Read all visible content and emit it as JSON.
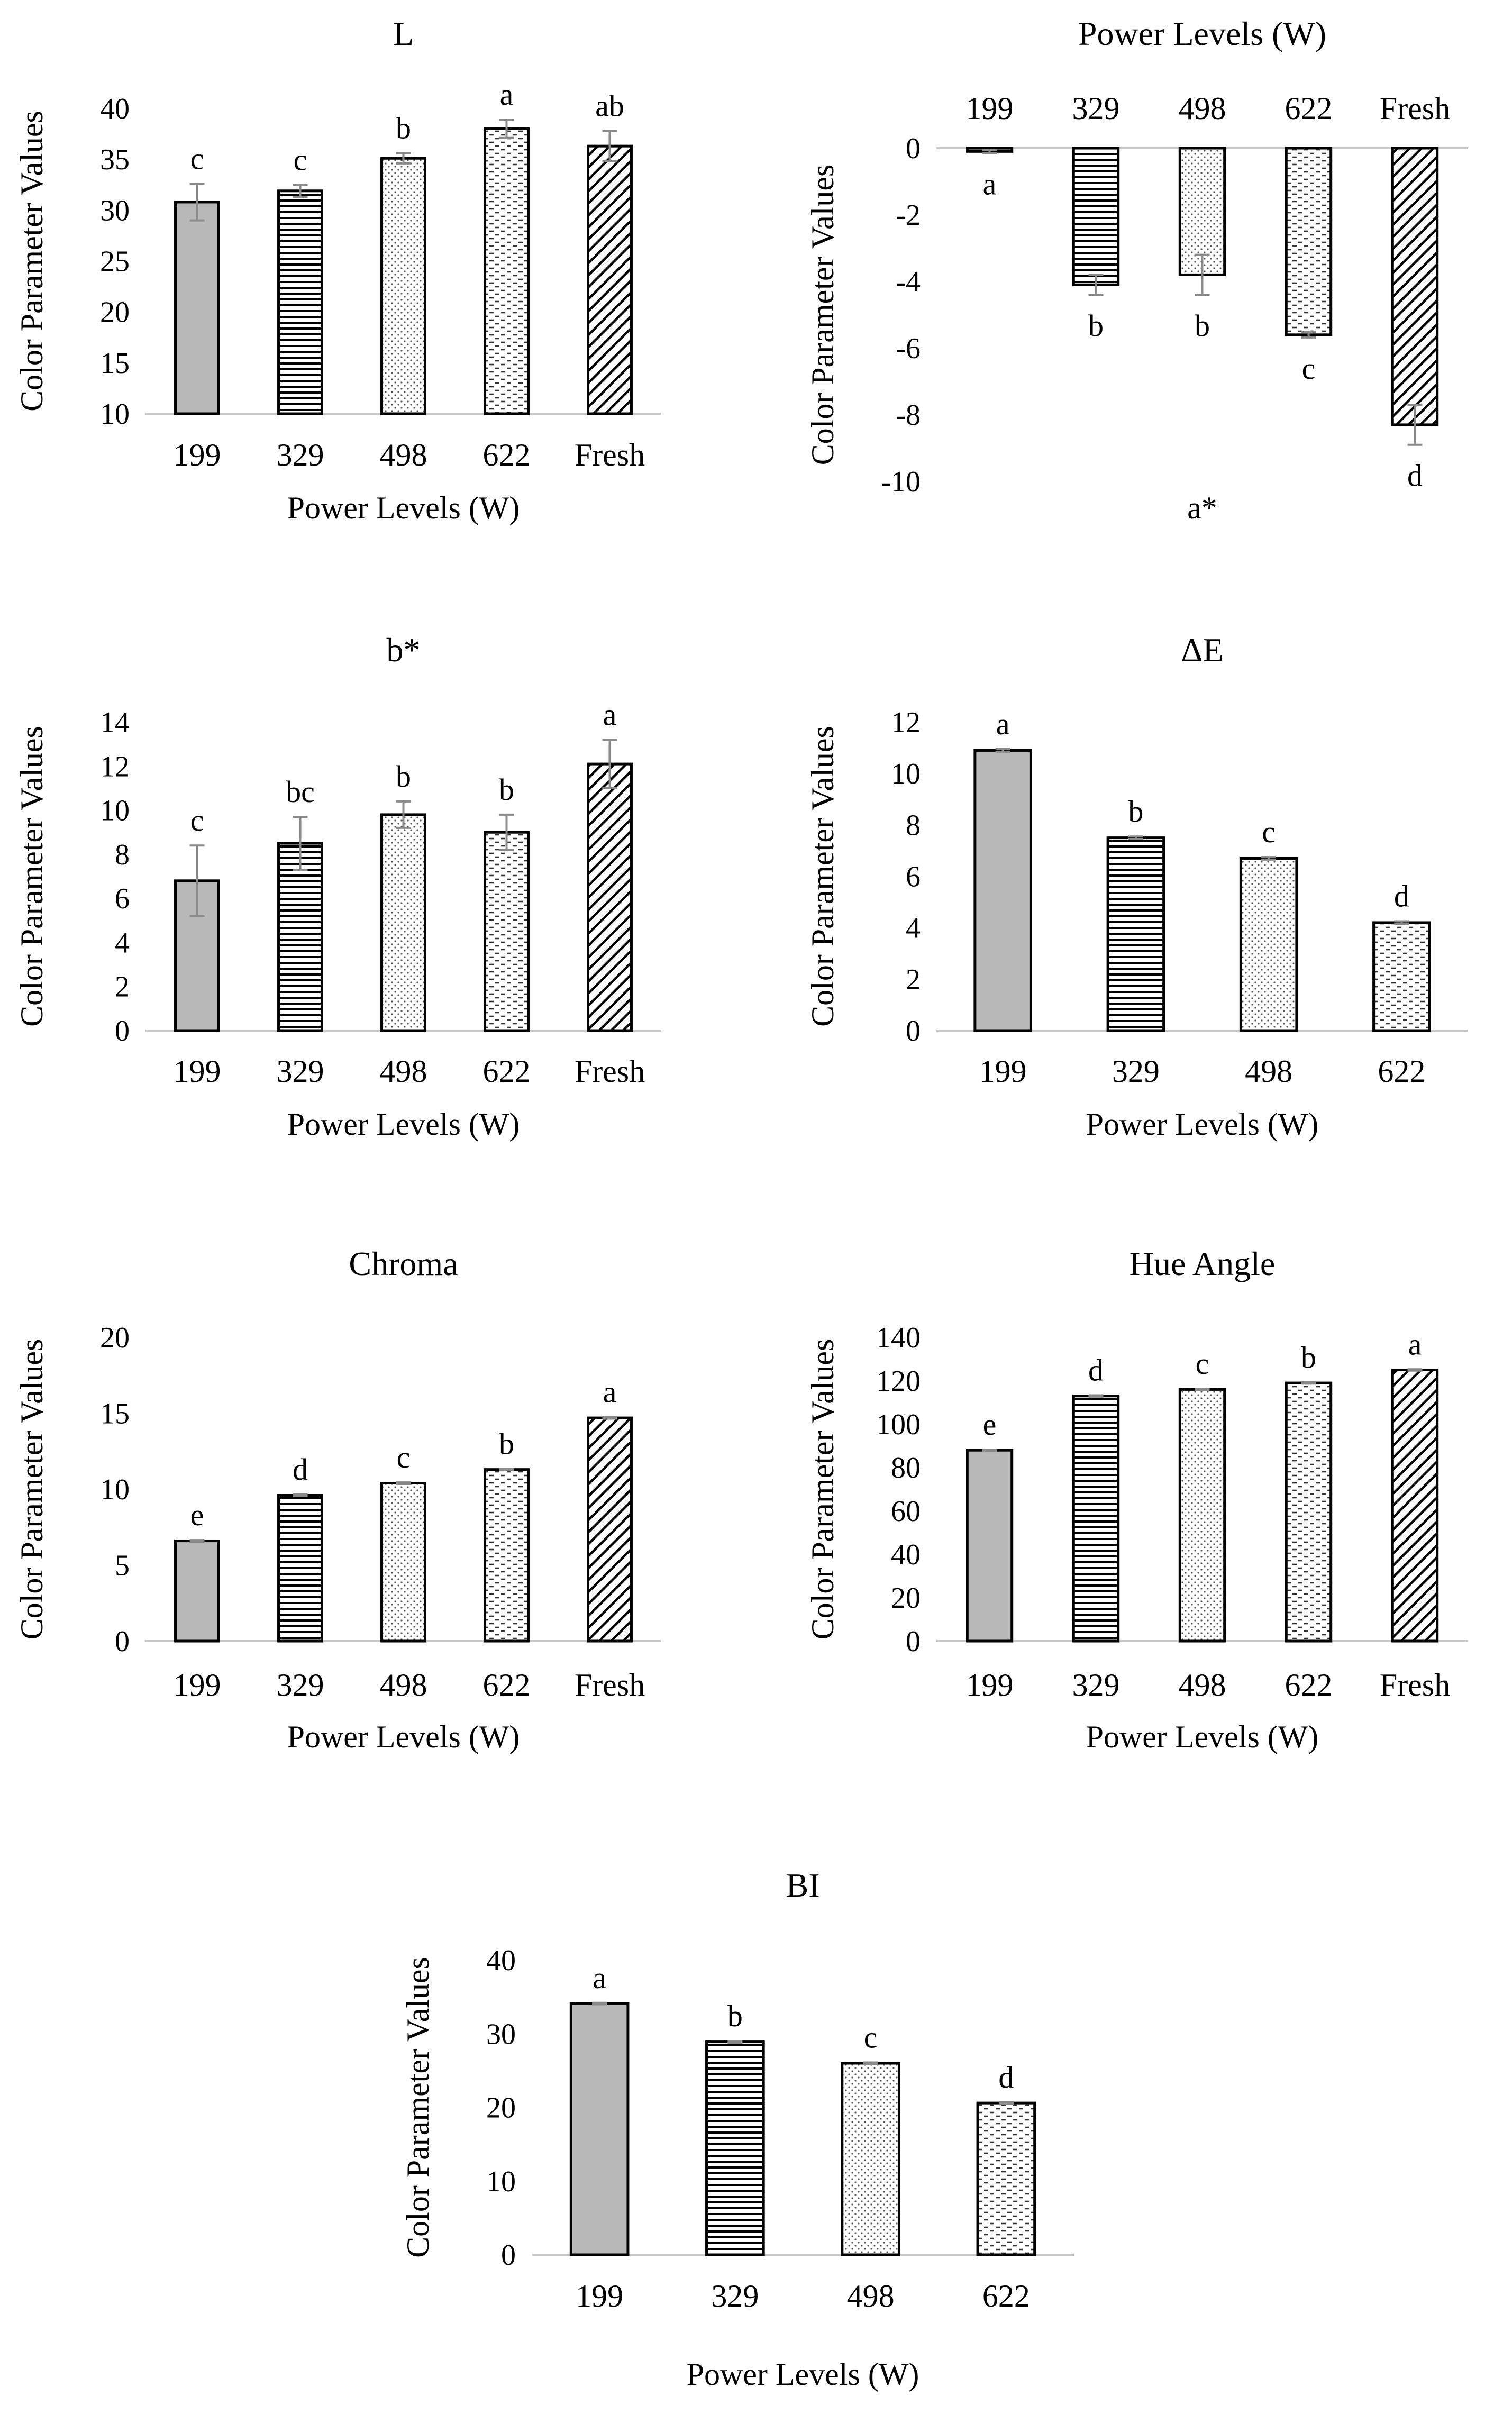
{
  "chart_data": [
    {
      "id": "L",
      "type": "bar",
      "title": "L",
      "xlabel": "Power Levels (W)",
      "ylabel": "Color Parameter Values",
      "categories": [
        "199",
        "329",
        "498",
        "622",
        "Fresh"
      ],
      "values": [
        30.8,
        31.9,
        35.1,
        38.0,
        36.3
      ],
      "errors": [
        1.8,
        0.6,
        0.5,
        0.9,
        1.5
      ],
      "letters": [
        "c",
        "c",
        "b",
        "a",
        "ab"
      ],
      "patterns": [
        "solid",
        "hlines",
        "dots",
        "dashes",
        "diag"
      ],
      "ylim": [
        10,
        40
      ],
      "yticks": [
        10,
        15,
        20,
        25,
        30,
        35,
        40
      ]
    },
    {
      "id": "a_star",
      "type": "bar",
      "title": "Power Levels (W)",
      "xlabel": "a*",
      "ylabel": "Color Parameter Values",
      "categories": [
        "199",
        "329",
        "498",
        "622",
        "Fresh"
      ],
      "values": [
        -0.1,
        -4.1,
        -3.8,
        -5.6,
        -8.3
      ],
      "errors": [
        0.05,
        0.3,
        0.6,
        0.08,
        0.6
      ],
      "letters": [
        "a",
        "b",
        "b",
        "c",
        "d"
      ],
      "patterns": [
        "solid",
        "hlines",
        "dots",
        "dashes",
        "diag"
      ],
      "ylim": [
        -10,
        0
      ],
      "yticks": [
        0,
        -2,
        -4,
        -6,
        -8,
        -10
      ]
    },
    {
      "id": "b_star",
      "type": "bar",
      "title": "b*",
      "xlabel": "Power Levels (W)",
      "ylabel": "Color Parameter Values",
      "categories": [
        "199",
        "329",
        "498",
        "622",
        "Fresh"
      ],
      "values": [
        6.8,
        8.5,
        9.8,
        9.0,
        12.1
      ],
      "errors": [
        1.6,
        1.2,
        0.6,
        0.8,
        1.1
      ],
      "letters": [
        "c",
        "bc",
        "b",
        "b",
        "a"
      ],
      "patterns": [
        "solid",
        "hlines",
        "dots",
        "dashes",
        "diag"
      ],
      "ylim": [
        0,
        14
      ],
      "yticks": [
        0,
        2,
        4,
        6,
        8,
        10,
        12,
        14
      ]
    },
    {
      "id": "delta_e",
      "type": "bar",
      "title": "ΔE",
      "xlabel": "Power Levels (W)",
      "ylabel": "Color Parameter Values",
      "categories": [
        "199",
        "329",
        "498",
        "622"
      ],
      "values": [
        10.9,
        7.5,
        6.7,
        4.2
      ],
      "errors": [
        0.05,
        0.05,
        0.05,
        0.05
      ],
      "letters": [
        "a",
        "b",
        "c",
        "d"
      ],
      "patterns": [
        "solid",
        "hlines",
        "dots",
        "dashes"
      ],
      "ylim": [
        0,
        12
      ],
      "yticks": [
        0,
        2,
        4,
        6,
        8,
        10,
        12
      ]
    },
    {
      "id": "chroma",
      "type": "bar",
      "title": "Chroma",
      "xlabel": "Power Levels (W)",
      "ylabel": "Color Parameter Values",
      "categories": [
        "199",
        "329",
        "498",
        "622",
        "Fresh"
      ],
      "values": [
        6.6,
        9.6,
        10.4,
        11.3,
        14.7
      ],
      "errors": [
        0.05,
        0.05,
        0.05,
        0.05,
        0.05
      ],
      "letters": [
        "e",
        "d",
        "c",
        "b",
        "a"
      ],
      "patterns": [
        "solid",
        "hlines",
        "dots",
        "dashes",
        "diag"
      ],
      "ylim": [
        0,
        20
      ],
      "yticks": [
        0,
        5,
        10,
        15,
        20
      ]
    },
    {
      "id": "hue_angle",
      "type": "bar",
      "title": "Hue Angle",
      "xlabel": "Power Levels (W)",
      "ylabel": "Color Parameter Values",
      "categories": [
        "199",
        "329",
        "498",
        "622",
        "Fresh"
      ],
      "values": [
        88,
        113,
        116,
        119,
        125
      ],
      "errors": [
        0.3,
        0.3,
        0.3,
        0.3,
        0.3
      ],
      "letters": [
        "e",
        "d",
        "c",
        "b",
        "a"
      ],
      "patterns": [
        "solid",
        "hlines",
        "dots",
        "dashes",
        "diag"
      ],
      "ylim": [
        0,
        140
      ],
      "yticks": [
        0,
        20,
        40,
        60,
        80,
        100,
        120,
        140
      ]
    },
    {
      "id": "bi",
      "type": "bar",
      "title": "BI",
      "xlabel": "Power Levels (W)",
      "ylabel": "Color Parameter Values",
      "categories": [
        "199",
        "329",
        "498",
        "622"
      ],
      "values": [
        34.1,
        28.9,
        26.0,
        20.6
      ],
      "errors": [
        0.1,
        0.1,
        0.1,
        0.1
      ],
      "letters": [
        "a",
        "b",
        "c",
        "d"
      ],
      "patterns": [
        "solid",
        "hlines",
        "dots",
        "dashes"
      ],
      "ylim": [
        0,
        40
      ],
      "yticks": [
        0,
        10,
        20,
        30,
        40
      ]
    }
  ],
  "colors": {
    "bar_solid": "#b9b9b9",
    "outline": "#000000",
    "error_bar": "#8a8a8a",
    "axis": "#c8c8c8"
  }
}
